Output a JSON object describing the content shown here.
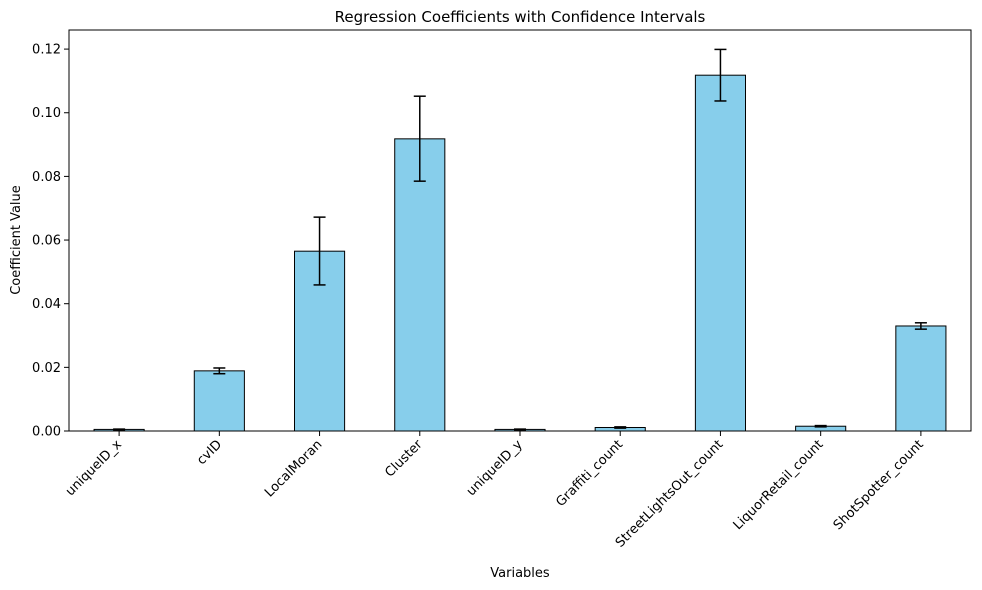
{
  "chart_data": {
    "type": "bar",
    "title": "Regression Coefficients with Confidence Intervals",
    "xlabel": "Variables",
    "ylabel": "Coefficient Value",
    "categories": [
      "uniqueID_x",
      "cvID",
      "LocalMoran",
      "Cluster",
      "uniqueID_y",
      "Graffiti_count",
      "StreetLightsOut_count",
      "LiquorRetail_count",
      "ShotSpotter_count"
    ],
    "values": [
      0.0005,
      0.0189,
      0.0565,
      0.0918,
      0.0005,
      0.0011,
      0.1118,
      0.0015,
      0.033
    ],
    "error_low": [
      0.0004,
      0.018,
      0.0459,
      0.0785,
      0.0004,
      0.0009,
      0.1037,
      0.0013,
      0.032
    ],
    "error_high": [
      0.0006,
      0.0198,
      0.0672,
      0.1052,
      0.0006,
      0.0013,
      0.1199,
      0.0017,
      0.034
    ],
    "ylim": [
      0,
      0.126
    ],
    "yticks": [
      "0.00",
      "0.02",
      "0.04",
      "0.06",
      "0.08",
      "0.10",
      "0.12"
    ],
    "ytick_values": [
      0,
      0.02,
      0.04,
      0.06,
      0.08,
      0.1,
      0.12
    ],
    "bar_color": "#87ceeb",
    "edge_color": "#000000",
    "reference_line": {
      "y": 0,
      "color": "#cc0000",
      "style": "dashed"
    },
    "grid": false,
    "legend": "none"
  }
}
